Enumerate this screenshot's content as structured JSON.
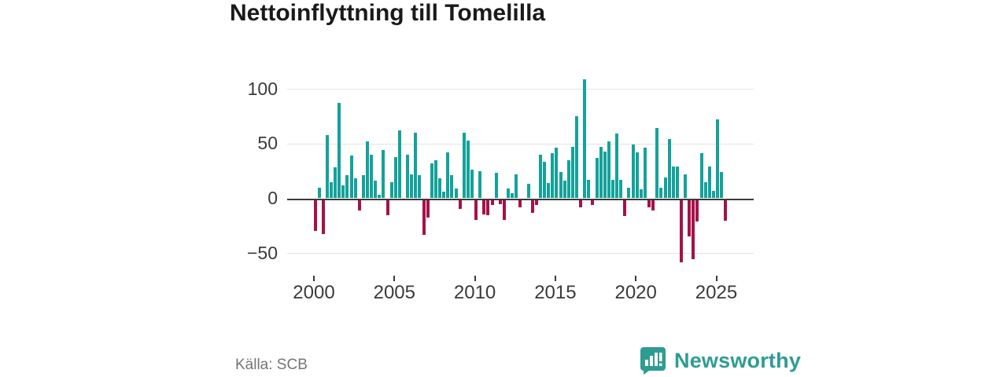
{
  "title": "Nettoinflyttning till Tomelilla",
  "source_label": "Källa: SCB",
  "brand": {
    "name": "Newsworthy",
    "color": "#2f9c93"
  },
  "colors": {
    "positive_bar": "#14a29a",
    "negative_bar": "#a61148",
    "grid": "#e3e3e3",
    "axis": "#3a3a3a"
  },
  "chart_data": {
    "type": "bar",
    "title": "Nettoinflyttning till Tomelilla",
    "xlabel": "",
    "ylabel": "",
    "frequency": "quarterly",
    "start_period": "2000 Q1",
    "end_period": "2025 Q3",
    "grid": true,
    "ylim": [
      -66,
      120
    ],
    "y_ticks": [
      {
        "value": 100,
        "label": "100"
      },
      {
        "value": 50,
        "label": "50"
      },
      {
        "value": 0,
        "label": "0"
      },
      {
        "value": -50,
        "label": "−50"
      }
    ],
    "y_gridlines": [
      100,
      50,
      -50
    ],
    "x_ticks": [
      {
        "index": 0,
        "label": "2000"
      },
      {
        "index": 20,
        "label": "2005"
      },
      {
        "index": 40,
        "label": "2010"
      },
      {
        "index": 60,
        "label": "2015"
      },
      {
        "index": 80,
        "label": "2020"
      },
      {
        "index": 100,
        "label": "2025"
      }
    ],
    "values": [
      -28,
      10,
      -31,
      58,
      15,
      28,
      87,
      12,
      21,
      39,
      18,
      -10,
      21,
      52,
      40,
      16,
      3,
      44,
      -14,
      15,
      38,
      62,
      0,
      40,
      22,
      60,
      21,
      -32,
      -16,
      32,
      35,
      18,
      6,
      42,
      21,
      9,
      -8,
      60,
      53,
      26,
      -18,
      25,
      -13,
      -14,
      -5,
      23,
      -4,
      -18,
      9,
      5,
      22,
      -7,
      0,
      13,
      -12,
      -5,
      40,
      33,
      14,
      41,
      46,
      24,
      16,
      35,
      47,
      75,
      -7,
      109,
      17,
      -5,
      37,
      47,
      43,
      52,
      17,
      59,
      17,
      -15,
      10,
      49,
      42,
      8,
      46,
      -7,
      -10,
      64,
      10,
      19,
      54,
      29,
      29,
      -57,
      22,
      -33,
      -54,
      -20,
      41,
      15,
      29,
      7,
      72,
      24,
      -19
    ]
  }
}
